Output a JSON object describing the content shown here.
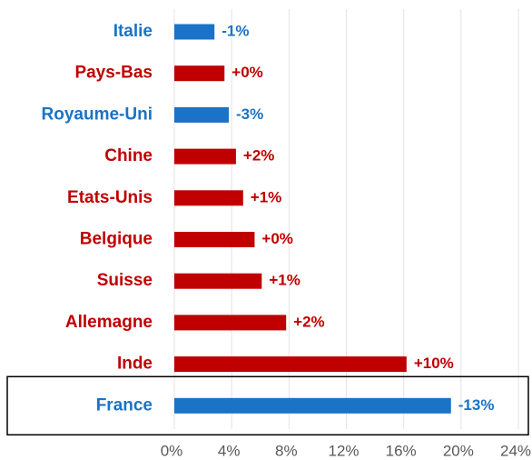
{
  "chart_data": {
    "type": "hbar",
    "categories": [
      "Italie",
      "Pays-Bas",
      "Royaume-Uni",
      "Chine",
      "Etats-Unis",
      "Belgique",
      "Suisse",
      "Allemagne",
      "Inde",
      "France"
    ],
    "values": [
      2.8,
      3.5,
      3.8,
      4.3,
      4.8,
      5.6,
      6.1,
      7.8,
      16.2,
      19.3
    ],
    "change_labels": [
      "-1%",
      "+0%",
      "-3%",
      "+2%",
      "+1%",
      "+0%",
      "+1%",
      "+2%",
      "+10%",
      "-13%"
    ],
    "colors": [
      "#1a73c6",
      "#c00000",
      "#1a73c6",
      "#c00000",
      "#c00000",
      "#c00000",
      "#c00000",
      "#c00000",
      "#c00000",
      "#1a73c6"
    ],
    "xlim": [
      0,
      24
    ],
    "xticks": [
      {
        "value": 0,
        "label": "0%"
      },
      {
        "value": 4,
        "label": "4%"
      },
      {
        "value": 8,
        "label": "8%"
      },
      {
        "value": 12,
        "label": "12%"
      },
      {
        "value": 16,
        "label": "16%"
      },
      {
        "value": 20,
        "label": "20%"
      },
      {
        "value": 24,
        "label": "24%"
      }
    ],
    "grid": true
  }
}
